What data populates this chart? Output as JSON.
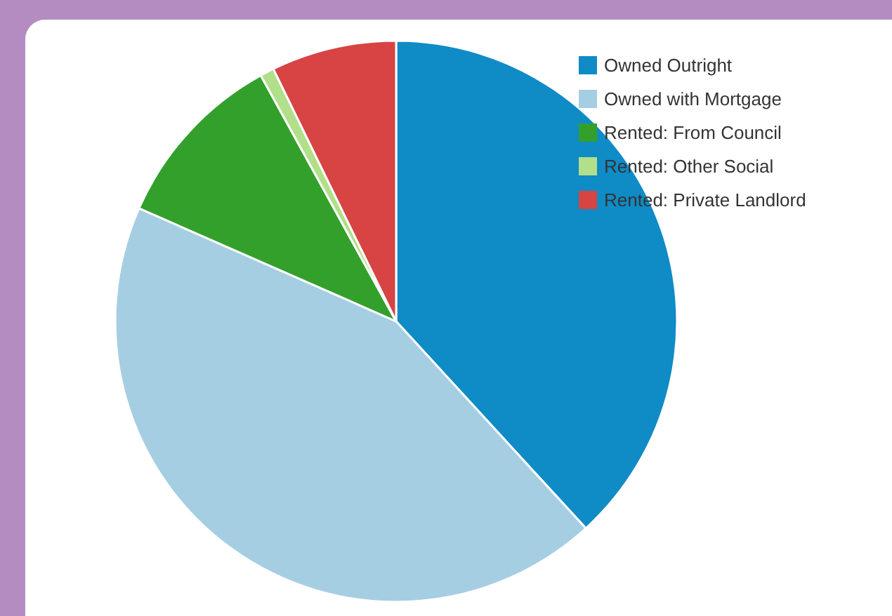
{
  "chart_data": {
    "type": "pie",
    "categories": [
      "Owned Outright",
      "Owned with Mortgage",
      "Rented: From Council",
      "Rented: Other Social",
      "Rented: Private Landlord"
    ],
    "values": [
      38.2,
      43.4,
      10.4,
      0.8,
      7.2
    ],
    "colors": [
      "#0f8bc6",
      "#a6cee3",
      "#33a02c",
      "#b2df8a",
      "#d84343"
    ],
    "legend": "top right"
  }
}
